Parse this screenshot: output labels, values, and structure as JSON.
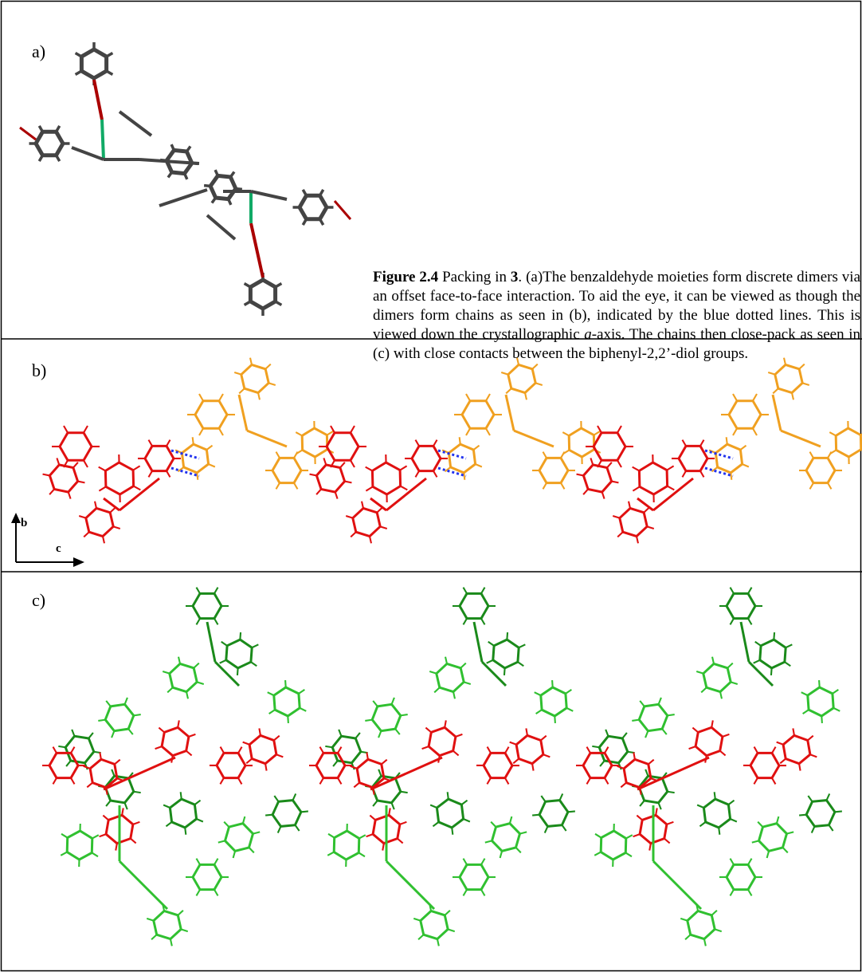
{
  "panels": [
    {
      "label": "a)"
    },
    {
      "label": "b)"
    },
    {
      "label": "c)"
    }
  ],
  "axes": {
    "vertical": "b",
    "horizontal": "c"
  },
  "caption": {
    "runs": [
      {
        "text": "Figure 2.4",
        "style": "bold"
      },
      {
        "text": " Packing in ",
        "style": "normal"
      },
      {
        "text": "3",
        "style": "bold"
      },
      {
        "text": ". (a)The benzaldehyde moieties form discrete dimers via an offset face-to-face interaction. To aid the eye, it can be viewed as though the dimers form chains as seen in (b), indicated by the blue dotted lines. This is viewed down the crystallographic ",
        "style": "normal"
      },
      {
        "text": "a",
        "style": "italic"
      },
      {
        "text": "-axis. The chains then close-pack as seen in (c) with close contacts between the biphenyl-2,2’-diol groups.",
        "style": "normal"
      }
    ]
  }
}
